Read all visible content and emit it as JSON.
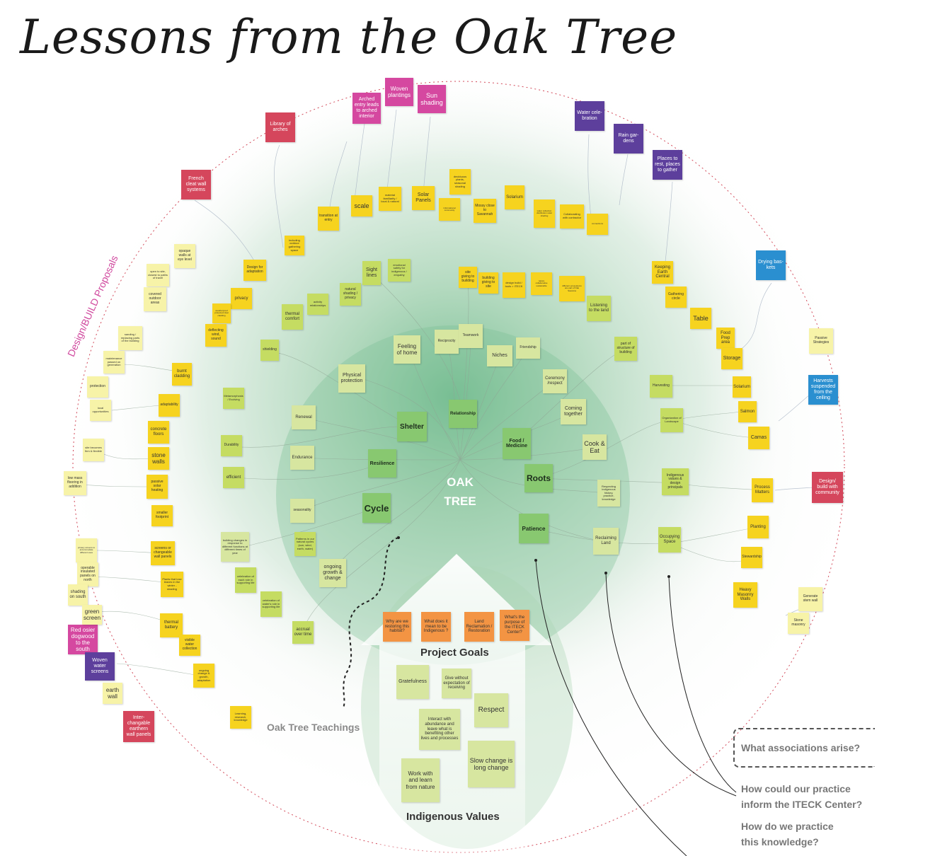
{
  "title": "Lessons from the Oak Tree",
  "design_build_label": "Design/BUILD Proposals",
  "center": {
    "line1": "OAK",
    "line2": "TREE"
  },
  "section_labels": {
    "project_goals": "Project Goals",
    "indigenous_values": "Indigenous Values",
    "teachings": "Oak Tree Teachings"
  },
  "questions": {
    "associations": "What associations arise?",
    "practice_line1": "How could our practice",
    "practice_line2": "inform the ITECK Center?",
    "knowledge_line1": "How do we practice",
    "knowledge_line2": "this knowledge?"
  },
  "colors": {
    "yellow": "#f6d31f",
    "pale_yellow": "#f7f3a8",
    "lime": "#c5dc62",
    "pale_green": "#d7e6a0",
    "green": "#88c870",
    "orange": "#f39443",
    "red": "#d5465c",
    "magenta": "#d548a0",
    "purple": "#5d3f9c",
    "blue": "#2a8fd0",
    "foliage": "#bfe0c8",
    "dotted_circle": "#d24a5a"
  },
  "core_concepts": [
    "Shelter",
    "Relationship",
    "Resilience",
    "Food / Medicine",
    "Roots",
    "Cycle",
    "Patience"
  ],
  "proposals": [
    "Woven plantings",
    "Sun shading",
    "Arched entry leads to arched interior",
    "Library of arches",
    "French cleat wall systems",
    "Water cele- bration",
    "Rain gar- dens",
    "Places to rest, places to gather",
    "Drying bas- kets",
    "Harvests suspended from the ceiling",
    "Design/ build with community",
    "Red osier dogwood to the south",
    "Woven water screens",
    "Inter- changable earthern wall panels"
  ],
  "notes": [
    "Feeling of home",
    "Physical protection",
    "Reciprocity",
    "Teamwork",
    "Friendship",
    "Niches",
    "Ceremony /respect",
    "Coming together",
    "Cook & Eat",
    "Renewal",
    "Endurance",
    "Durability",
    "efficient",
    "seasonality",
    "ongoing growth & change",
    "accrual over time",
    "Reclaiming Land",
    "Respecting indigenous history, practice, knowledge",
    "thermal comfort",
    "shielding",
    "Metamorphosis / Evolving",
    "building changes in response to different functions at different times of year",
    "celebration of each role in supporting life",
    "celebration of water's role in supporting life",
    "Patterns in our natural cycles (sun, wind, earth, water)",
    "Sight lines",
    "emotional safety for indigenous / empathy",
    "natural shading / privacy",
    "activity relationships",
    "site giving to building",
    "building giving to site",
    "design build / tools > ITECK",
    "nature collaborative sustainable",
    "different ecosystems are part of Oak Savanna",
    "Listening to the land",
    "Keeping Earth Central",
    "Gathering circle",
    "Table",
    "Food Prep area",
    "Storage",
    "Solarium",
    "Salmon",
    "Camas",
    "Process Matters",
    "Planting",
    "Stewardship",
    "Heavy Masonry Walls",
    "Generate stem wall",
    "Stone masonry",
    "Passive Strategies",
    "part of structure of building",
    "Harvesting",
    "Organization of Landscape",
    "Indigenous values & design principals",
    "Occupying Space",
    "scale",
    "Solar Panels",
    "material familiarity / local & natural",
    "transition at entry",
    "deciduous plants, seasonal shading",
    "Mossy close to Savannah",
    "Solarium",
    "water collection distribution solar shading",
    "Collaborating with contractor",
    "connections",
    "informational community",
    "including outdoor gathering space",
    "Design for adaptation",
    "opaque walls at eye level",
    "open to site, closest to paths of travel",
    "covered outdoor areas",
    "privacy",
    "weatherproof protected clear cladding",
    "deflecting wind, sound",
    "sanding / replacing parts of the building",
    "maintenance passed on generation",
    "burnt cladding",
    "protection",
    "local opportunities",
    "adaptability",
    "concrete floors",
    "site becomes firm & flexible",
    "stone walls",
    "low mass flooring in addition",
    "passive solar heating",
    "smaller footprint",
    "privacy screens to accommodate different uses",
    "screens or changeable wall panels",
    "operable insulated panels on north",
    "Plants that lose leaves in the winter - shading",
    "shading on south",
    "green screen",
    "thermal battery",
    "visible water collection",
    "ongoing change & growth, adaptation",
    "earth wall",
    "Learning, research, knowledge"
  ],
  "project_goals": [
    "Why are we restoring this habitat?",
    "What does it mean to be Indigenous ?",
    "Land Reclamation / Restoration",
    "What's the purpose of the ITECK Center?"
  ],
  "values": [
    "Gratefulness",
    "Give without expectation of receiving",
    "Respect",
    "Interact with abundance and leave what is benefiting other lives and processes",
    "Slow change is long change",
    "Work with and learn from nature"
  ]
}
